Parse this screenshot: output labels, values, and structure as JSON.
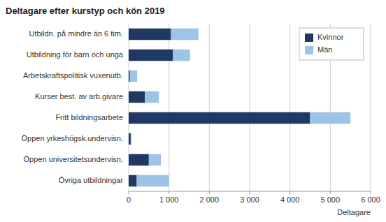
{
  "chart_data": {
    "type": "bar",
    "orientation": "horizontal",
    "stacked": true,
    "title": "Deltagare efter kurstyp och kön 2019",
    "categories": [
      "Övriga utbildningar",
      "Öppen universitetsundervisn.",
      "Öppen yrkeshögsk.undervisn.",
      "Fritt bildningsarbete",
      "Kurser best. av arb.givare",
      "Arbetskraftspolitisk vuxenutb.",
      "Utbildning för barn och unga",
      "Utbildn. på mindre än 6 tim."
    ],
    "series": [
      {
        "name": "Kvinnor",
        "color": "#1F3864",
        "values": [
          200,
          500,
          50,
          4500,
          400,
          30,
          1100,
          1050
        ]
      },
      {
        "name": "Män",
        "color": "#9DC3E6",
        "values": [
          800,
          300,
          20,
          1000,
          350,
          180,
          420,
          680
        ]
      }
    ],
    "xlabel": "Deltagare",
    "xlim": [
      0,
      6000
    ],
    "xticks": [
      0,
      {
        "value": 1000,
        "label": "1 000"
      },
      {
        "value": 2000,
        "label": "2 000"
      },
      {
        "value": 3000,
        "label": "3 000"
      },
      {
        "value": 4000,
        "label": "4 000"
      },
      {
        "value": 5000,
        "label": "5 000"
      },
      {
        "value": 6000,
        "label": "6 000"
      }
    ],
    "grid": true,
    "legend": "upper right"
  }
}
